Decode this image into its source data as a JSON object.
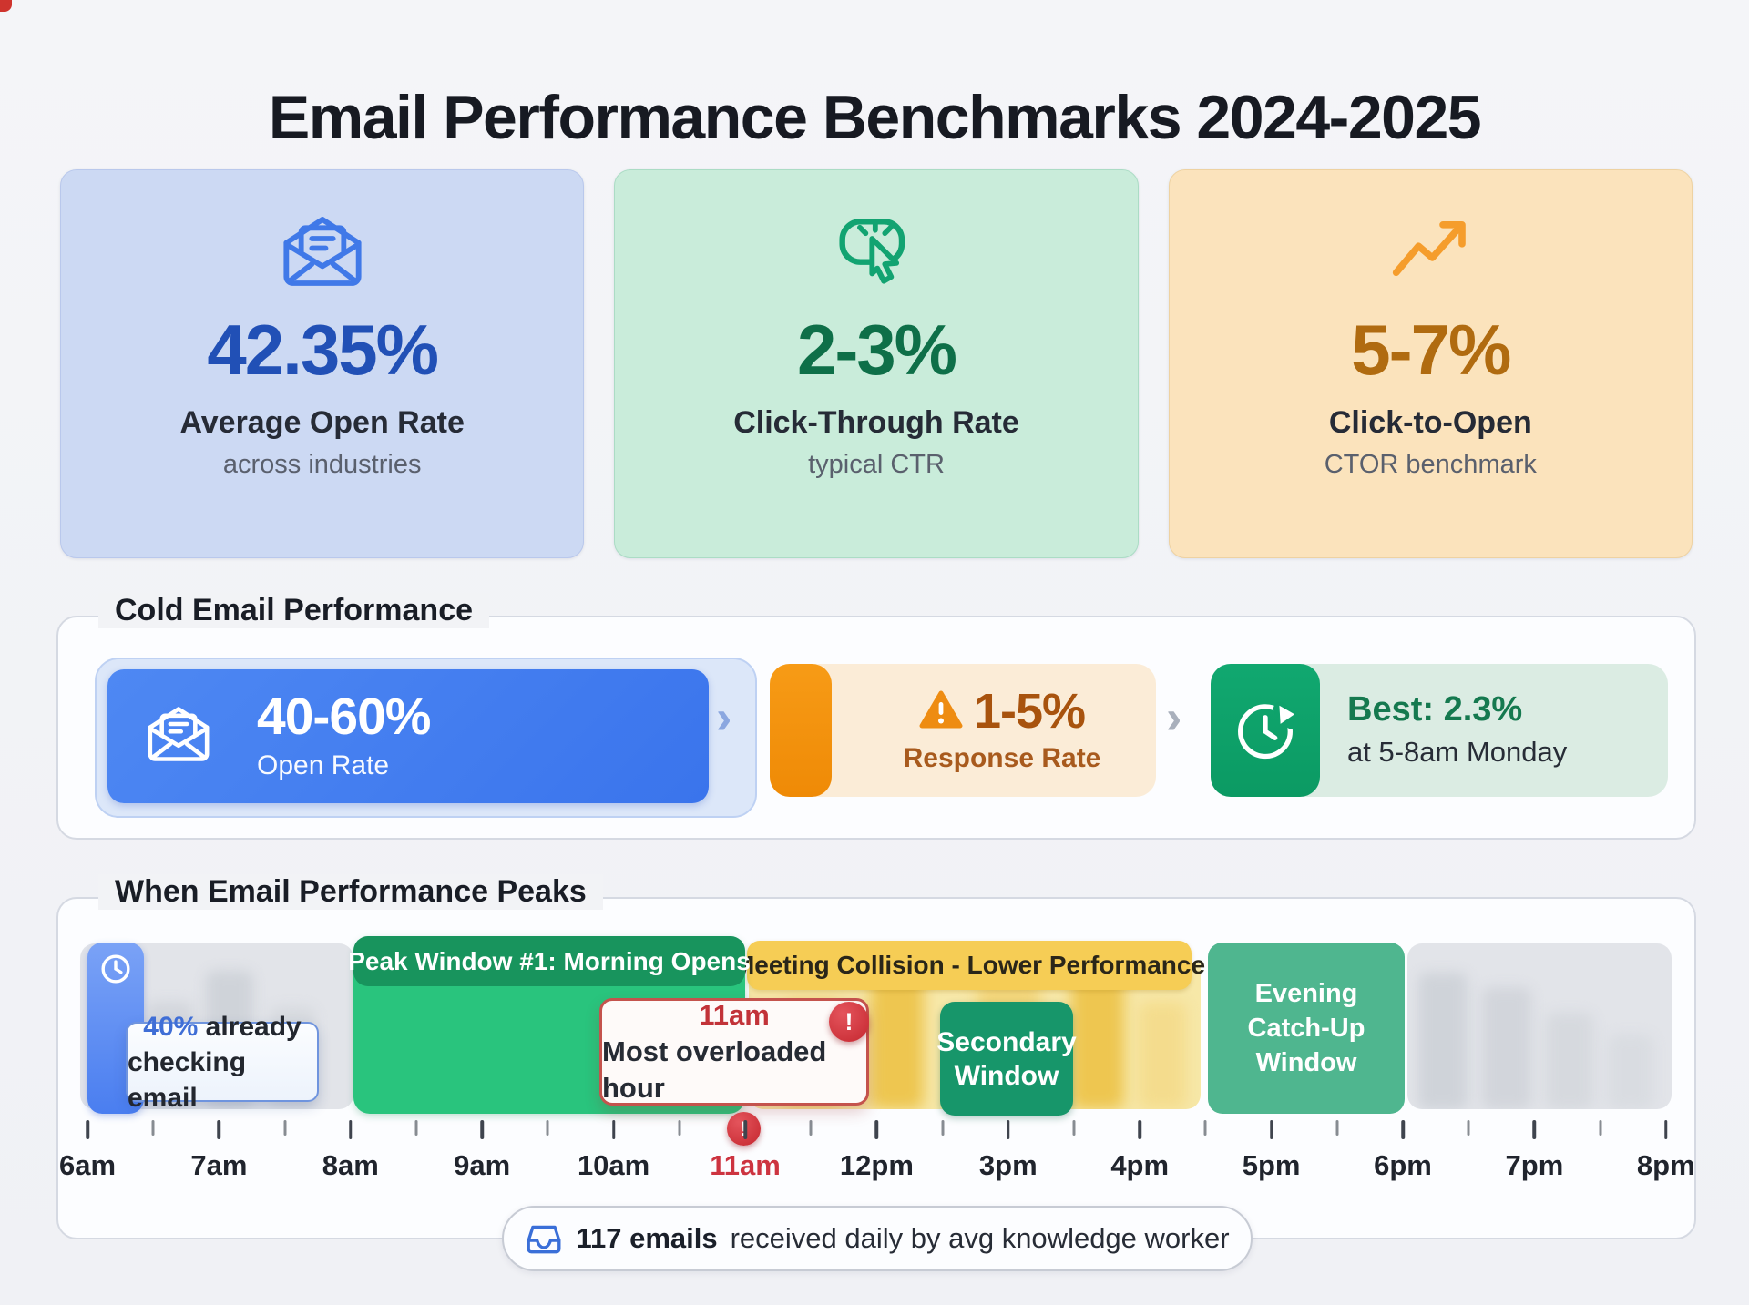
{
  "page": {
    "title": "Email Performance Benchmarks 2024-2025"
  },
  "colors": {
    "blue_accent": "#3a74ec",
    "green_accent": "#12a371",
    "orange_accent": "#f5930c",
    "peak_green": "#29c47d",
    "peak_green_header": "#18945d",
    "collision_yellow": "#f6cd55",
    "alert_red": "#c5272f",
    "teal_evening": "#4fb68f"
  },
  "stat_cards": [
    {
      "icon": "mail-open-icon",
      "value": "42.35%",
      "label": "Average Open Rate",
      "sublabel": "across industries",
      "value_color": "#2150b6",
      "bg": "#ccd9f3"
    },
    {
      "icon": "cursor-click-icon",
      "value": "2-3%",
      "label": "Click-Through Rate",
      "sublabel": "typical CTR",
      "value_color": "#0e6f48",
      "bg": "#c9ecda"
    },
    {
      "icon": "trend-up-icon",
      "value": "5-7%",
      "label": "Click-to-Open",
      "sublabel": "CTOR benchmark",
      "value_color": "#b06b10",
      "bg": "#fbe3bc"
    }
  ],
  "cold_email": {
    "section_title": "Cold Email Performance",
    "chevron": "›",
    "step1": {
      "value": "40-60%",
      "label": "Open Rate"
    },
    "step2": {
      "value": "1-5%",
      "label": "Response Rate"
    },
    "step3": {
      "value": "Best: 2.3%",
      "label": "at 5-8am Monday"
    }
  },
  "timeline": {
    "section_title": "When Email Performance Peaks",
    "blocks": {
      "peak1": "Peak Window #1: Morning Opens",
      "collision": "Meeting Collision - Lower Performance",
      "secondary_l1": "Secondary",
      "secondary_l2": "Window",
      "evening_l1": "Evening",
      "evening_l2": "Catch-Up",
      "evening_l3": "Window"
    },
    "callout_checking": {
      "highlight": "40%",
      "line1_rest": " already",
      "line2": "checking email"
    },
    "callout_overload": {
      "title": "11am",
      "text": "Most overloaded hour"
    },
    "alert_glyph": "!",
    "axis": {
      "hours": [
        "6am",
        "7am",
        "8am",
        "9am",
        "10am",
        "11am",
        "12pm",
        "3pm",
        "4pm",
        "5pm",
        "6pm",
        "7pm",
        "8pm"
      ],
      "highlight": "11am"
    },
    "footer": {
      "bold": "117 emails",
      "rest": " received daily by avg knowledge worker"
    }
  },
  "chart_data": {
    "type": "timeline",
    "title": "When Email Performance Peaks",
    "x_axis_labels": [
      "6am",
      "7am",
      "8am",
      "9am",
      "10am",
      "11am",
      "12pm",
      "3pm",
      "4pm",
      "5pm",
      "6pm",
      "7pm",
      "8pm"
    ],
    "highlighted_tick": "11am",
    "segments": [
      {
        "label": "40% already checking email",
        "start": "6am",
        "end": "6:30am",
        "style": "blue-now-marker"
      },
      {
        "label": "Peak Window #1: Morning Opens",
        "start": "8am",
        "end": "11am",
        "style": "green-peak"
      },
      {
        "label": "Meeting Collision - Lower Performance",
        "start": "11am",
        "end": "4:30pm",
        "style": "yellow-warning"
      },
      {
        "label": "Secondary Window",
        "start": "12:30pm",
        "end": "3:30pm",
        "style": "green-secondary"
      },
      {
        "label": "Evening Catch-Up Window",
        "start": "4:30pm",
        "end": "6pm",
        "style": "teal-evening"
      }
    ],
    "annotations": [
      {
        "at": "11am",
        "label": "Most overloaded hour",
        "style": "red-alert"
      },
      {
        "at": "6am",
        "label": "40% already checking email",
        "style": "info"
      }
    ],
    "stats": [
      {
        "value": "42.35%",
        "label": "Average Open Rate",
        "context": "across industries"
      },
      {
        "value": "2-3%",
        "label": "Click-Through Rate",
        "context": "typical CTR"
      },
      {
        "value": "5-7%",
        "label": "Click-to-Open",
        "context": "CTOR benchmark"
      },
      {
        "value": "40-60%",
        "label": "Cold email Open Rate"
      },
      {
        "value": "1-5%",
        "label": "Cold email Response Rate"
      },
      {
        "value": "2.3%",
        "label": "Best cold email response rate",
        "context": "at 5-8am Monday"
      },
      {
        "value": "117",
        "label": "emails received daily by avg knowledge worker"
      }
    ]
  }
}
